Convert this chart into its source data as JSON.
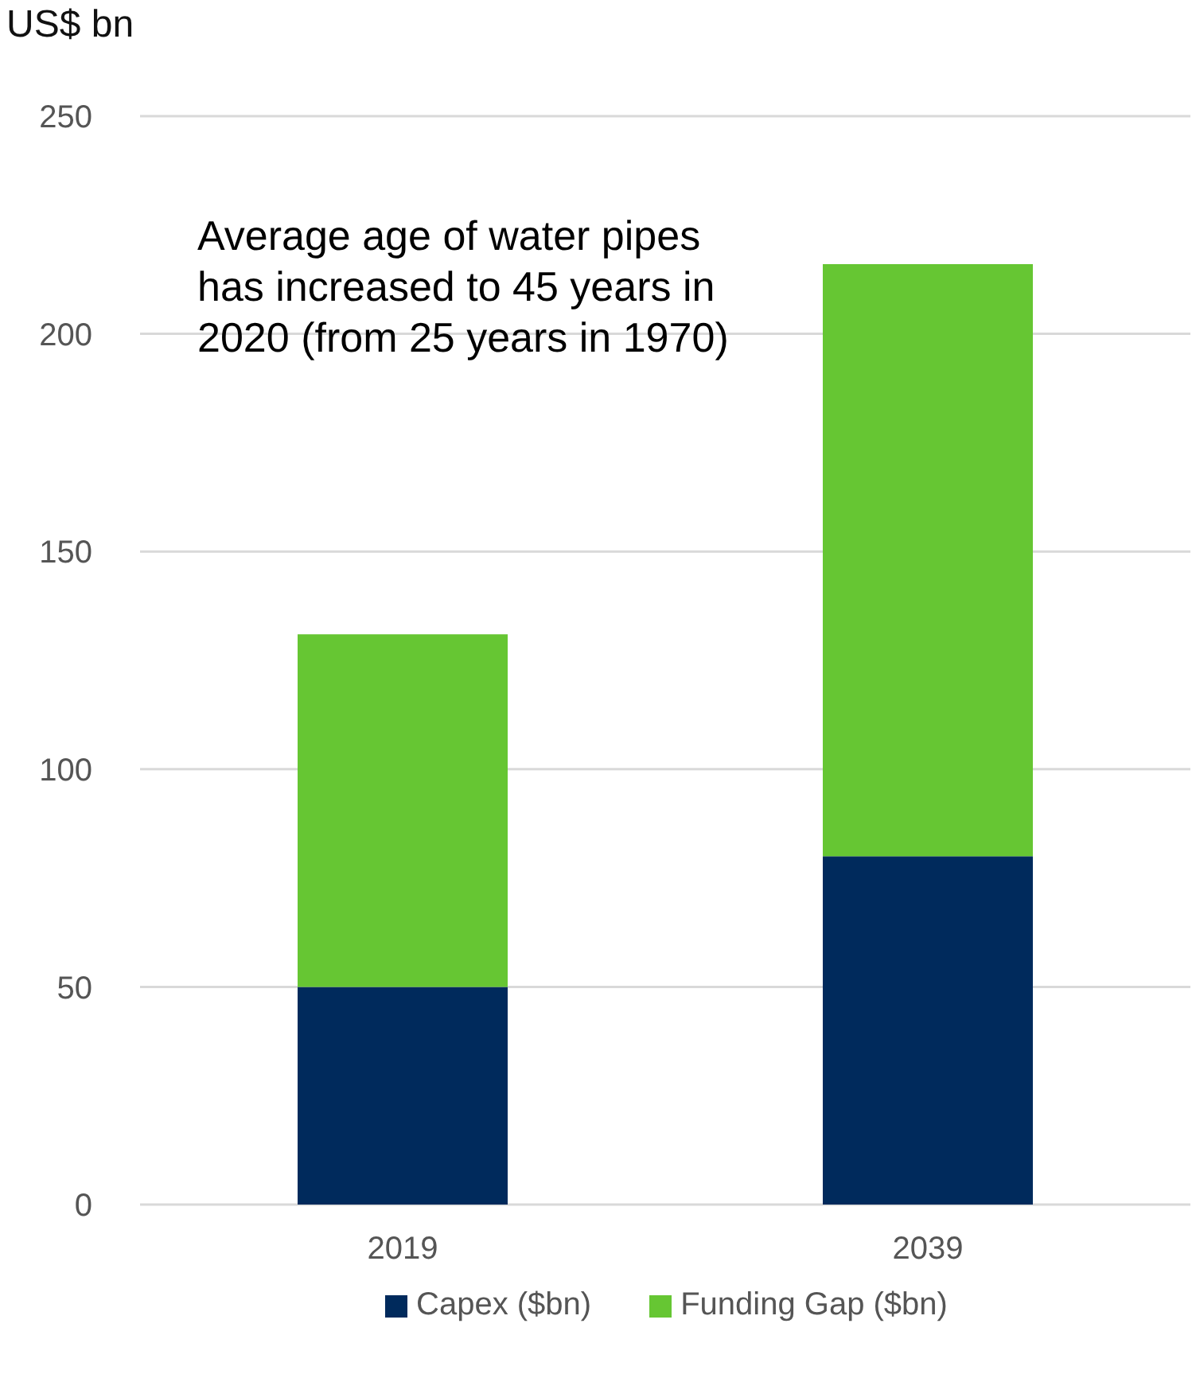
{
  "chart_data": {
    "type": "bar",
    "ylabel": "US$ bn",
    "categories": [
      "2019",
      "2039"
    ],
    "series": [
      {
        "name": "Capex ($bn)",
        "color": "#002a5c",
        "values": [
          50,
          80
        ]
      },
      {
        "name": "Funding Gap ($bn)",
        "color": "#66c633",
        "values": [
          81,
          136
        ]
      }
    ],
    "stacked": true,
    "ylim": [
      0,
      250
    ],
    "yticks": [
      0,
      50,
      100,
      150,
      200,
      250
    ],
    "grid": "y",
    "legend": "bottom",
    "annotations": [
      "Average age of water pipes has increased to 45 years in 2020 (from 25 years in 1970)"
    ]
  }
}
